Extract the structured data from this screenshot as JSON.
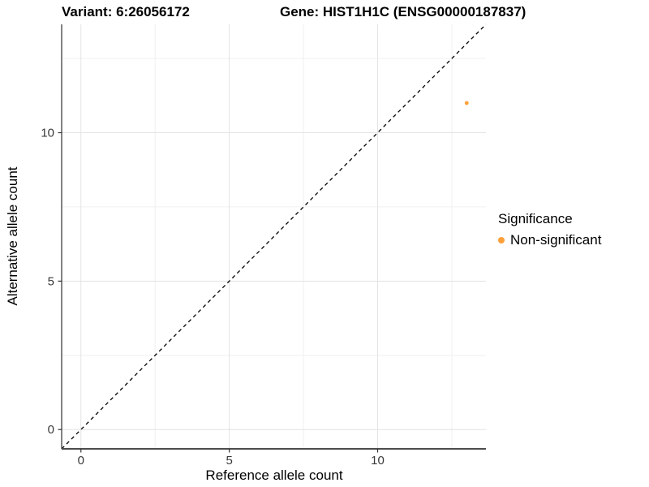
{
  "chart_data": {
    "type": "scatter",
    "title_left": "Variant: 6:26056172",
    "title_right": "Gene: HIST1H1C (ENSG00000187837)",
    "xlabel": "Reference allele count",
    "ylabel": "Alternative allele count",
    "xlim": [
      -0.65,
      13.65
    ],
    "ylim": [
      -0.65,
      13.65
    ],
    "x_major_ticks": [
      0,
      5,
      10
    ],
    "y_major_ticks": [
      0,
      5,
      10
    ],
    "x_minor_ticks": [
      2.5,
      7.5,
      12.5
    ],
    "y_minor_ticks": [
      2.5,
      7.5,
      12.5
    ],
    "grid": "major+minor",
    "identity_line": {
      "style": "dashed",
      "from": [
        -0.65,
        -0.65
      ],
      "to": [
        13.65,
        13.65
      ],
      "color": "#000000"
    },
    "series": [
      {
        "name": "Non-significant",
        "color": "#FCA03C",
        "points": [
          {
            "x": 13,
            "y": 11
          }
        ]
      }
    ],
    "legend": {
      "title": "Significance",
      "position": "right",
      "entries": [
        {
          "label": "Non-significant",
          "color": "#FCA03C"
        }
      ]
    },
    "theme": {
      "background": "#ffffff",
      "grid_major_color": "#e3e3e3",
      "grid_minor_color": "#f0f0f0",
      "axis_line_color": "#4d4d4d",
      "tick_color": "#333333",
      "tick_label_color": "#383838",
      "point_radius": 2.4,
      "legend_dot_radius": 4
    }
  }
}
